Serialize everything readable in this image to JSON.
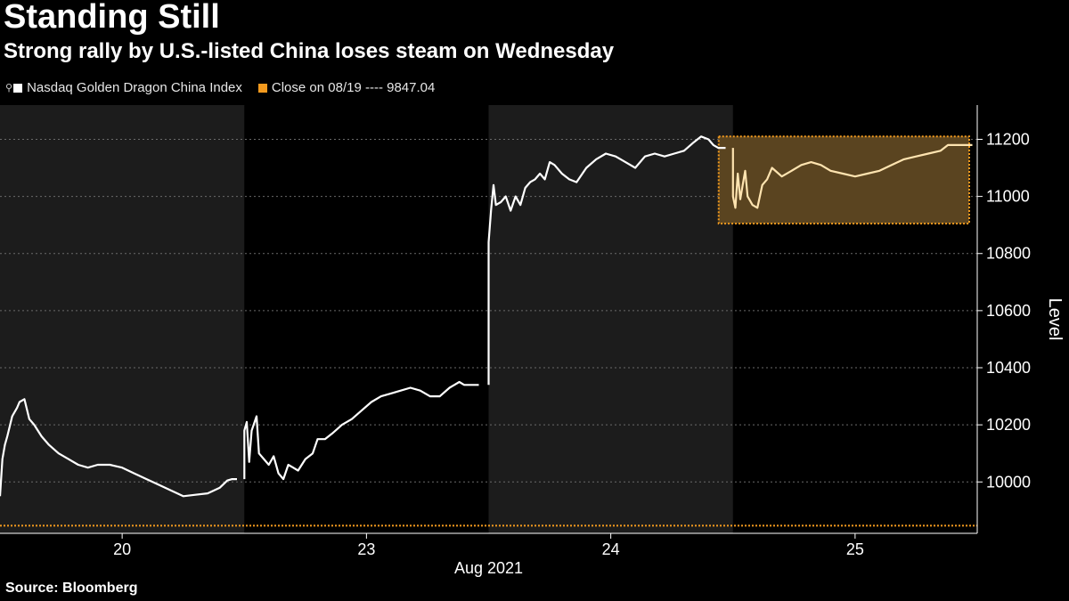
{
  "title": "Standing Still",
  "subtitle": "Strong rally by U.S.-listed China loses steam on Wednesday",
  "source": "Source: Bloomberg",
  "colors": {
    "background": "#000000",
    "shade": "#1c1c1c",
    "line": "#ffffff",
    "highlight": "#f39a1e",
    "highlight_fill": "#5a4420",
    "highlight_line": "#ffe4b0"
  },
  "legend": {
    "series_label": "Nasdaq Golden Dragon China Index",
    "reference_label": "Close on 08/19 ---- 9847.04"
  },
  "chart_data": {
    "type": "line",
    "title": "Standing Still",
    "subtitle": "Strong rally by U.S.-listed China loses steam on Wednesday",
    "xlabel": "Aug 2021",
    "ylabel": "Level",
    "ylim": [
      9820,
      11320
    ],
    "yticks": [
      "10000",
      "10200",
      "10400",
      "10600",
      "10800",
      "11000",
      "11200"
    ],
    "days": [
      "20",
      "23",
      "24",
      "25"
    ],
    "grid": true,
    "reference_line": {
      "label": "Close on 08/19",
      "value": 9847.04
    },
    "highlight_box": {
      "day_start": 3.0,
      "day_end": 4.0,
      "y_min": 10905,
      "y_max": 11210
    },
    "series": [
      {
        "name": "Nasdaq Golden Dragon China Index",
        "points": [
          [
            0.0,
            9950
          ],
          [
            0.01,
            10080
          ],
          [
            0.02,
            10130
          ],
          [
            0.03,
            10160
          ],
          [
            0.05,
            10230
          ],
          [
            0.07,
            10260
          ],
          [
            0.08,
            10280
          ],
          [
            0.1,
            10290
          ],
          [
            0.12,
            10220
          ],
          [
            0.14,
            10200
          ],
          [
            0.17,
            10160
          ],
          [
            0.2,
            10130
          ],
          [
            0.24,
            10100
          ],
          [
            0.28,
            10080
          ],
          [
            0.32,
            10060
          ],
          [
            0.36,
            10050
          ],
          [
            0.4,
            10060
          ],
          [
            0.45,
            10060
          ],
          [
            0.5,
            10050
          ],
          [
            0.55,
            10030
          ],
          [
            0.6,
            10010
          ],
          [
            0.65,
            9990
          ],
          [
            0.7,
            9970
          ],
          [
            0.75,
            9950
          ],
          [
            0.8,
            9955
          ],
          [
            0.85,
            9960
          ],
          [
            0.9,
            9980
          ],
          [
            0.93,
            10005
          ],
          [
            0.95,
            10010
          ],
          [
            0.97,
            10010
          ],
          [
            1.0,
            10010
          ],
          [
            1.0,
            10180
          ],
          [
            1.01,
            10210
          ],
          [
            1.02,
            10070
          ],
          [
            1.03,
            10180
          ],
          [
            1.05,
            10230
          ],
          [
            1.06,
            10100
          ],
          [
            1.08,
            10080
          ],
          [
            1.1,
            10060
          ],
          [
            1.12,
            10090
          ],
          [
            1.14,
            10030
          ],
          [
            1.16,
            10010
          ],
          [
            1.18,
            10060
          ],
          [
            1.2,
            10050
          ],
          [
            1.22,
            10040
          ],
          [
            1.25,
            10080
          ],
          [
            1.28,
            10100
          ],
          [
            1.3,
            10150
          ],
          [
            1.33,
            10150
          ],
          [
            1.36,
            10170
          ],
          [
            1.4,
            10200
          ],
          [
            1.44,
            10220
          ],
          [
            1.48,
            10250
          ],
          [
            1.52,
            10280
          ],
          [
            1.56,
            10300
          ],
          [
            1.6,
            10310
          ],
          [
            1.64,
            10320
          ],
          [
            1.68,
            10330
          ],
          [
            1.72,
            10320
          ],
          [
            1.76,
            10300
          ],
          [
            1.8,
            10300
          ],
          [
            1.84,
            10330
          ],
          [
            1.88,
            10350
          ],
          [
            1.9,
            10340
          ],
          [
            1.93,
            10340
          ],
          [
            1.96,
            10340
          ],
          [
            2.0,
            10340
          ],
          [
            2.0,
            10840
          ],
          [
            2.01,
            10950
          ],
          [
            2.02,
            11040
          ],
          [
            2.03,
            10970
          ],
          [
            2.05,
            10980
          ],
          [
            2.07,
            11000
          ],
          [
            2.09,
            10950
          ],
          [
            2.11,
            11000
          ],
          [
            2.13,
            10970
          ],
          [
            2.15,
            11030
          ],
          [
            2.17,
            11050
          ],
          [
            2.19,
            11060
          ],
          [
            2.21,
            11080
          ],
          [
            2.23,
            11060
          ],
          [
            2.25,
            11120
          ],
          [
            2.27,
            11110
          ],
          [
            2.3,
            11080
          ],
          [
            2.33,
            11060
          ],
          [
            2.36,
            11050
          ],
          [
            2.4,
            11100
          ],
          [
            2.44,
            11130
          ],
          [
            2.48,
            11150
          ],
          [
            2.52,
            11140
          ],
          [
            2.56,
            11120
          ],
          [
            2.6,
            11100
          ],
          [
            2.64,
            11140
          ],
          [
            2.68,
            11150
          ],
          [
            2.72,
            11140
          ],
          [
            2.76,
            11150
          ],
          [
            2.8,
            11160
          ],
          [
            2.84,
            11190
          ],
          [
            2.87,
            11210
          ],
          [
            2.9,
            11200
          ],
          [
            2.92,
            11180
          ],
          [
            2.94,
            11170
          ],
          [
            2.97,
            11170
          ],
          [
            3.0,
            11170
          ],
          [
            3.0,
            11000
          ],
          [
            3.01,
            10960
          ],
          [
            3.02,
            11080
          ],
          [
            3.03,
            10990
          ],
          [
            3.04,
            11040
          ],
          [
            3.05,
            11090
          ],
          [
            3.06,
            11000
          ],
          [
            3.08,
            10970
          ],
          [
            3.1,
            10960
          ],
          [
            3.12,
            11040
          ],
          [
            3.14,
            11060
          ],
          [
            3.16,
            11100
          ],
          [
            3.2,
            11070
          ],
          [
            3.24,
            11090
          ],
          [
            3.28,
            11110
          ],
          [
            3.32,
            11120
          ],
          [
            3.36,
            11110
          ],
          [
            3.4,
            11090
          ],
          [
            3.45,
            11080
          ],
          [
            3.5,
            11070
          ],
          [
            3.55,
            11080
          ],
          [
            3.6,
            11090
          ],
          [
            3.65,
            11110
          ],
          [
            3.7,
            11130
          ],
          [
            3.75,
            11140
          ],
          [
            3.8,
            11150
          ],
          [
            3.85,
            11160
          ],
          [
            3.88,
            11180
          ],
          [
            3.9,
            11180
          ],
          [
            3.94,
            11180
          ],
          [
            3.98,
            11180
          ]
        ]
      }
    ]
  }
}
